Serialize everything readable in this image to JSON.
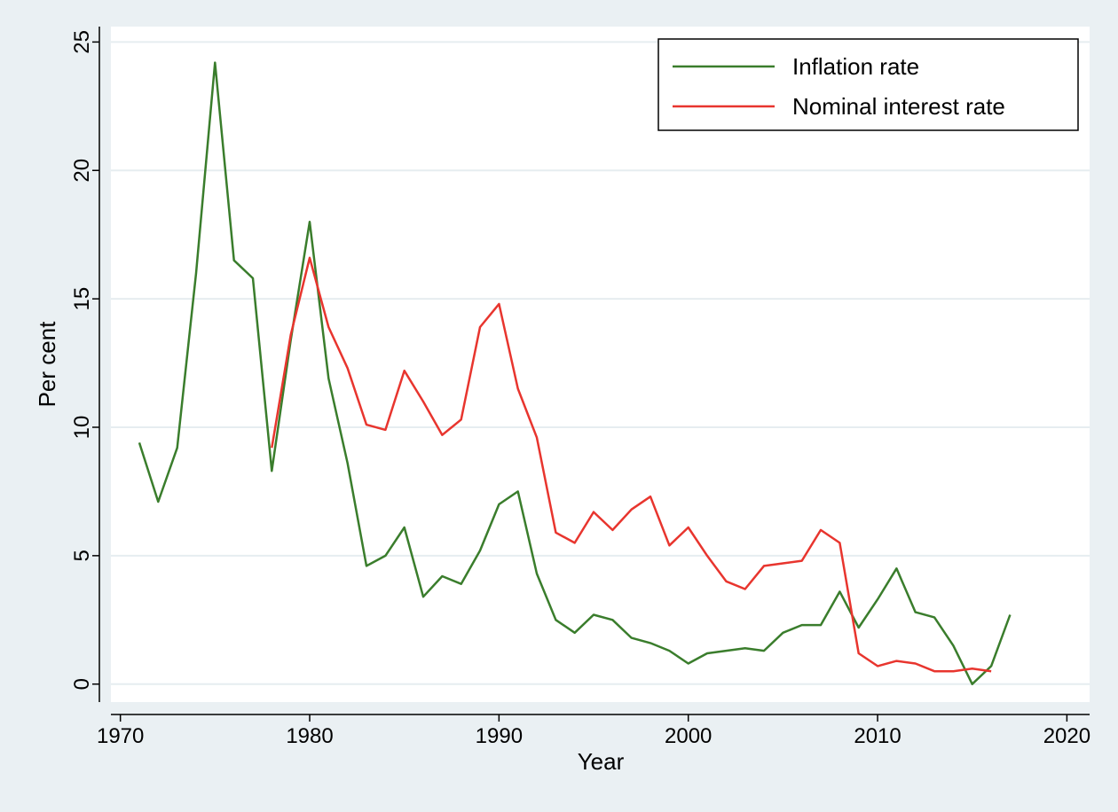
{
  "chart_data": {
    "type": "line",
    "title": "",
    "xlabel": "Year",
    "ylabel": "Per cent",
    "xlim": [
      1969.5,
      2021.2
    ],
    "ylim": [
      -0.7,
      25.6
    ],
    "xticks": [
      1970,
      1980,
      1990,
      2000,
      2010,
      2020
    ],
    "yticks": [
      0,
      5,
      10,
      15,
      20,
      25
    ],
    "grid": "horizontal",
    "legend_position": "top-right",
    "series": [
      {
        "name": "Inflation rate",
        "color": "#3a7d2c",
        "x": [
          1971,
          1972,
          1973,
          1974,
          1975,
          1976,
          1977,
          1978,
          1979,
          1980,
          1981,
          1982,
          1983,
          1984,
          1985,
          1986,
          1987,
          1988,
          1989,
          1990,
          1991,
          1992,
          1993,
          1994,
          1995,
          1996,
          1997,
          1998,
          1999,
          2000,
          2001,
          2002,
          2003,
          2004,
          2005,
          2006,
          2007,
          2008,
          2009,
          2010,
          2011,
          2012,
          2013,
          2014,
          2015,
          2016,
          2017
        ],
        "values": [
          9.4,
          7.1,
          9.2,
          16.0,
          24.2,
          16.5,
          15.8,
          8.3,
          13.4,
          18.0,
          11.9,
          8.6,
          4.6,
          5.0,
          6.1,
          3.4,
          4.2,
          3.9,
          5.2,
          7.0,
          7.5,
          4.3,
          2.5,
          2.0,
          2.7,
          2.5,
          1.8,
          1.6,
          1.3,
          0.8,
          1.2,
          1.3,
          1.4,
          1.3,
          2.0,
          2.3,
          2.3,
          3.6,
          2.2,
          3.3,
          4.5,
          2.8,
          2.6,
          1.5,
          0.0,
          0.7,
          2.7
        ]
      },
      {
        "name": "Nominal interest rate",
        "color": "#e8352e",
        "x": [
          1978,
          1979,
          1980,
          1981,
          1982,
          1983,
          1984,
          1985,
          1986,
          1987,
          1988,
          1989,
          1990,
          1991,
          1992,
          1993,
          1994,
          1995,
          1996,
          1997,
          1998,
          1999,
          2000,
          2001,
          2002,
          2003,
          2004,
          2005,
          2006,
          2007,
          2008,
          2009,
          2010,
          2011,
          2012,
          2013,
          2014,
          2015,
          2016
        ],
        "values": [
          9.2,
          13.6,
          16.6,
          13.9,
          12.3,
          10.1,
          9.9,
          12.2,
          11.0,
          9.7,
          10.3,
          13.9,
          14.8,
          11.5,
          9.6,
          5.9,
          5.5,
          6.7,
          6.0,
          6.8,
          7.3,
          5.4,
          6.1,
          5.0,
          4.0,
          3.7,
          4.6,
          4.7,
          4.8,
          6.0,
          5.5,
          1.2,
          0.7,
          0.9,
          0.8,
          0.5,
          0.5,
          0.6,
          0.5
        ]
      }
    ]
  }
}
